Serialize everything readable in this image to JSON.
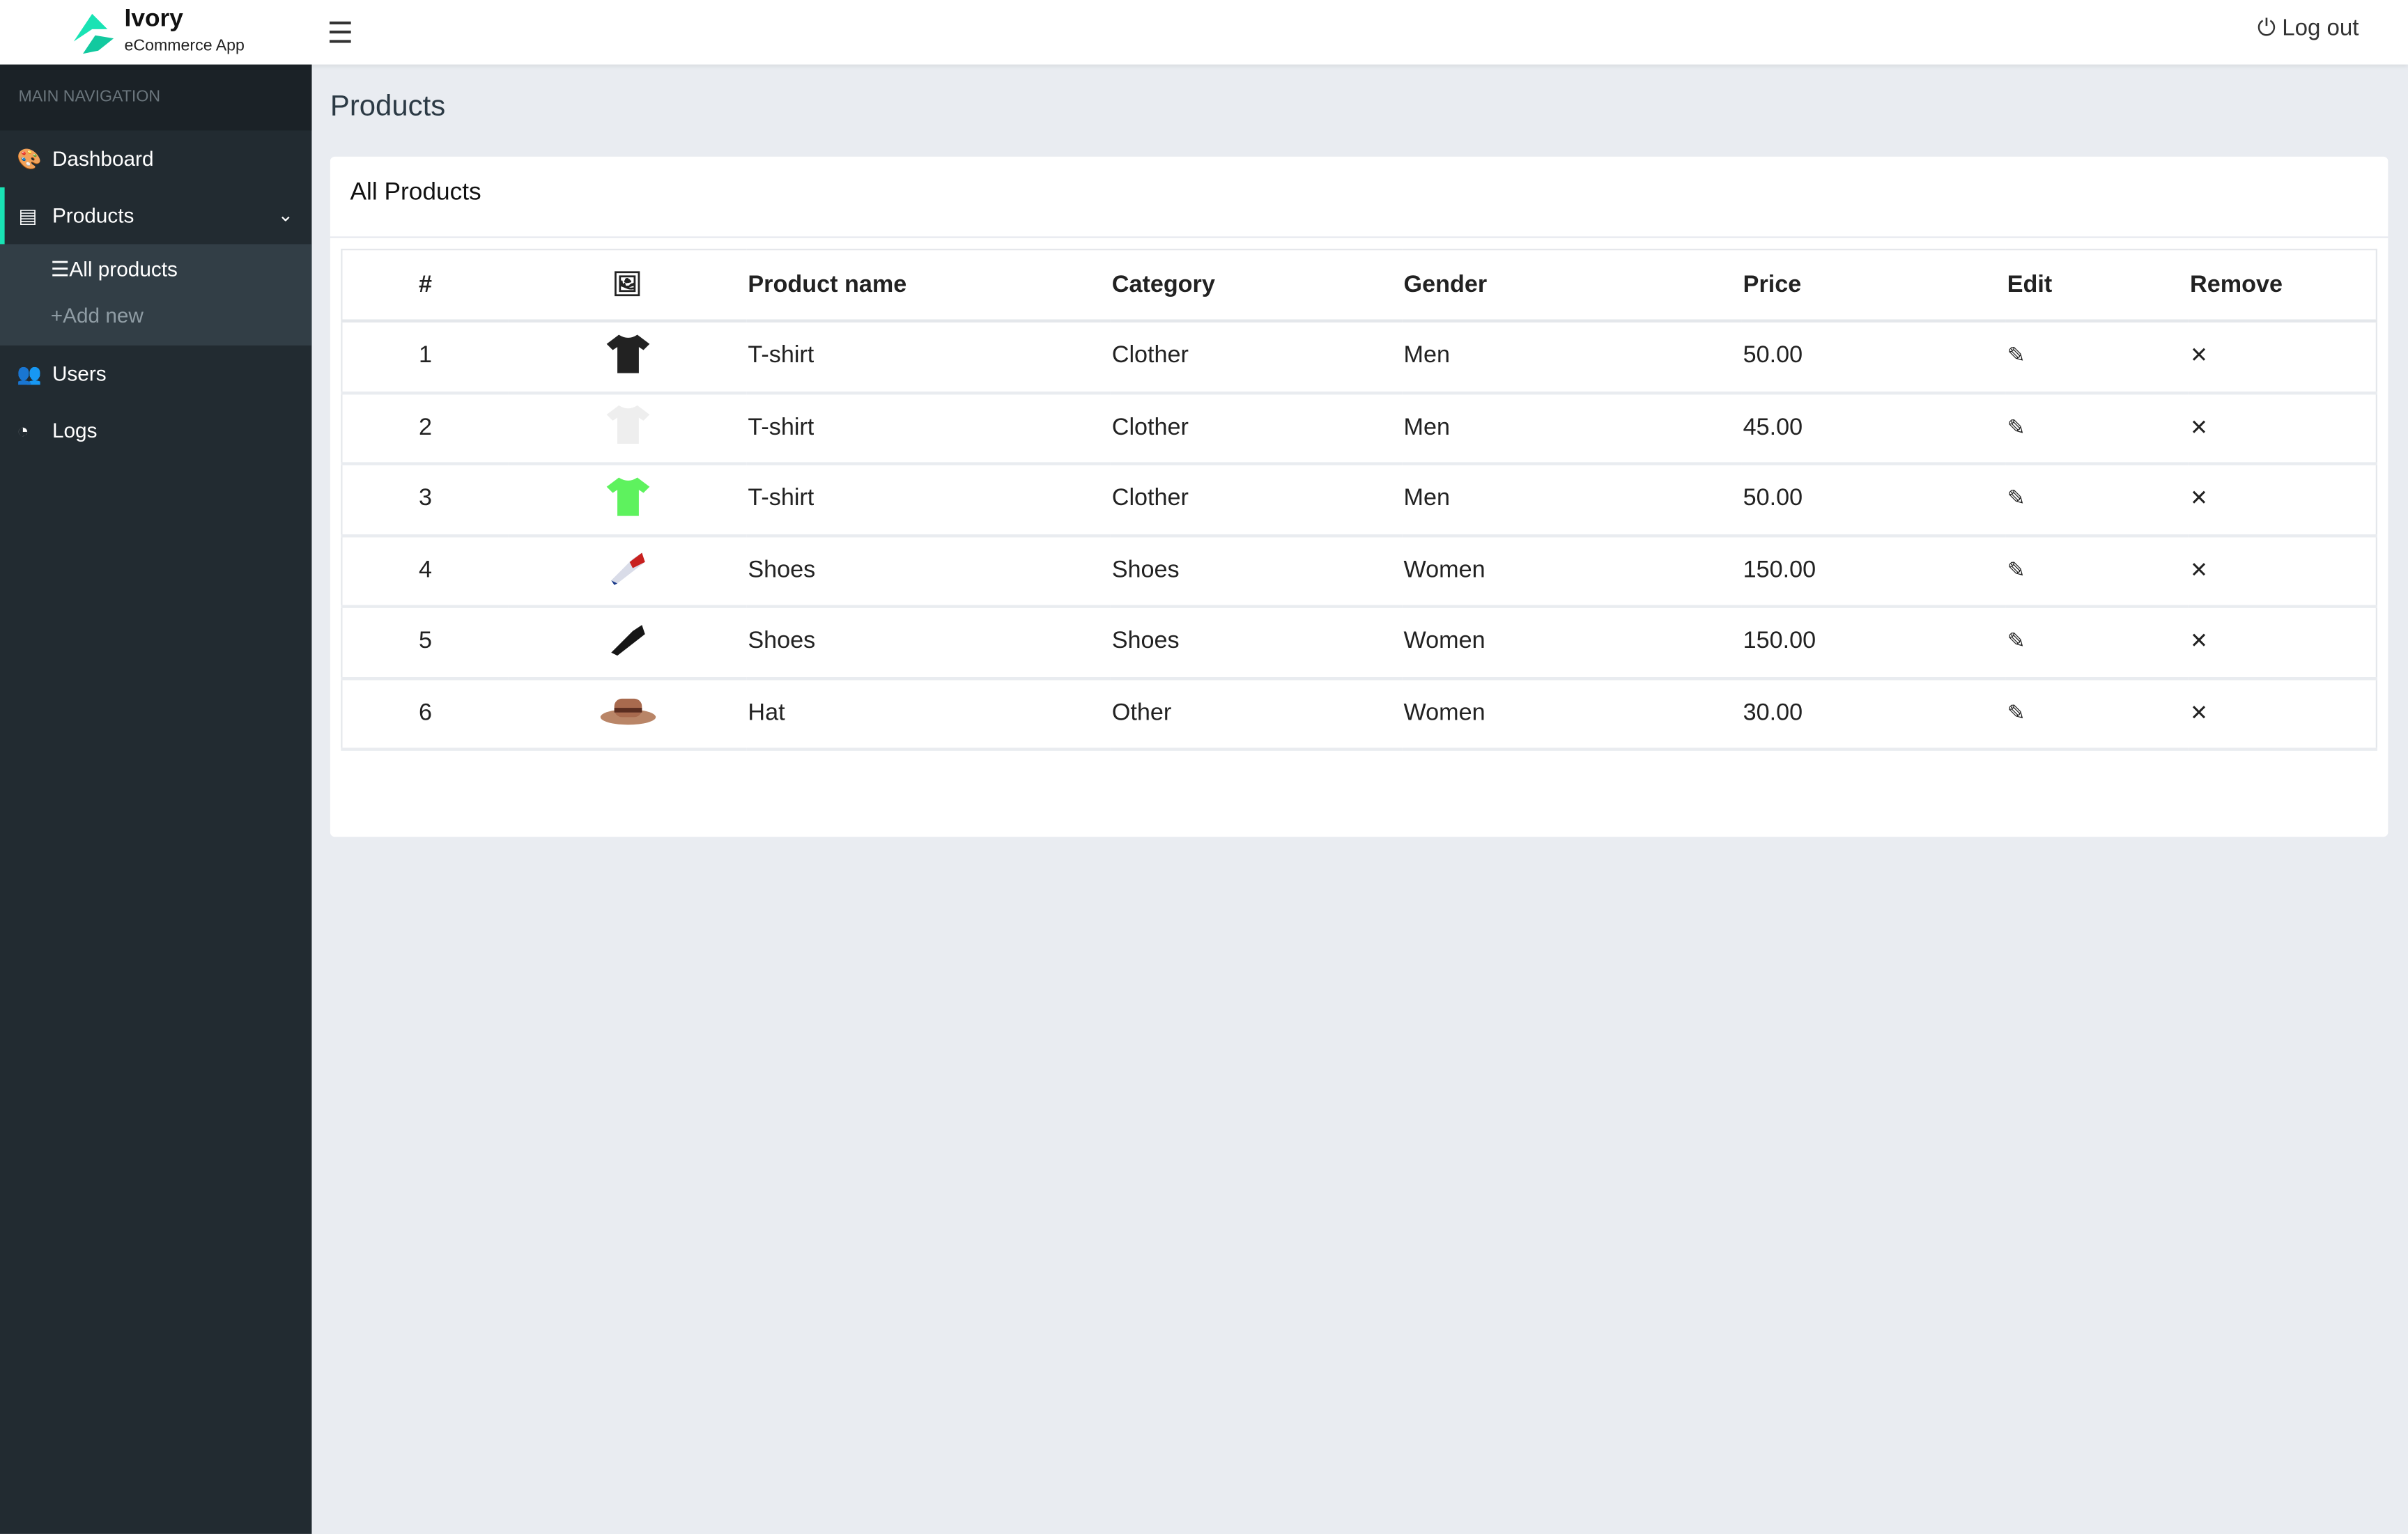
{
  "header": {
    "brand": "Ivory",
    "subtitle": "eCommerce App",
    "menu_icon": "hamburger-icon",
    "logout_label": "Log out",
    "logout_icon": "power-icon",
    "accent": "#19e3b4"
  },
  "sidebar": {
    "section_label": "MAIN NAVIGATION",
    "items": [
      {
        "label": "Dashboard",
        "icon": "palette-icon"
      },
      {
        "label": "Products",
        "icon": "server-icon",
        "active": true,
        "expanded": true,
        "children": [
          {
            "label": "All products",
            "icon": "list-icon"
          },
          {
            "label": "Add new",
            "icon": "plus-icon"
          }
        ]
      },
      {
        "label": "Users",
        "icon": "users-icon"
      },
      {
        "label": "Logs",
        "icon": "pie-chart-icon"
      }
    ]
  },
  "page": {
    "title": "Products"
  },
  "card": {
    "title": "All Products"
  },
  "table": {
    "columns": [
      "#",
      "image",
      "Product name",
      "Category",
      "Gender",
      "Price",
      "Edit",
      "Remove"
    ],
    "rows": [
      {
        "id": "1",
        "image": "black t-shirt",
        "name": "T-shirt",
        "category": "Clother",
        "gender": "Men",
        "price": "50.00"
      },
      {
        "id": "2",
        "image": "white t-shirt",
        "name": "T-shirt",
        "category": "Clother",
        "gender": "Men",
        "price": "45.00"
      },
      {
        "id": "3",
        "image": "green t-shirt",
        "name": "T-shirt",
        "category": "Clother",
        "gender": "Men",
        "price": "50.00"
      },
      {
        "id": "4",
        "image": "white/red sneaker",
        "name": "Shoes",
        "category": "Shoes",
        "gender": "Women",
        "price": "150.00"
      },
      {
        "id": "5",
        "image": "black sneaker",
        "name": "Shoes",
        "category": "Shoes",
        "gender": "Women",
        "price": "150.00"
      },
      {
        "id": "6",
        "image": "brown hat",
        "name": "Hat",
        "category": "Other",
        "gender": "Women",
        "price": "30.00"
      }
    ]
  }
}
